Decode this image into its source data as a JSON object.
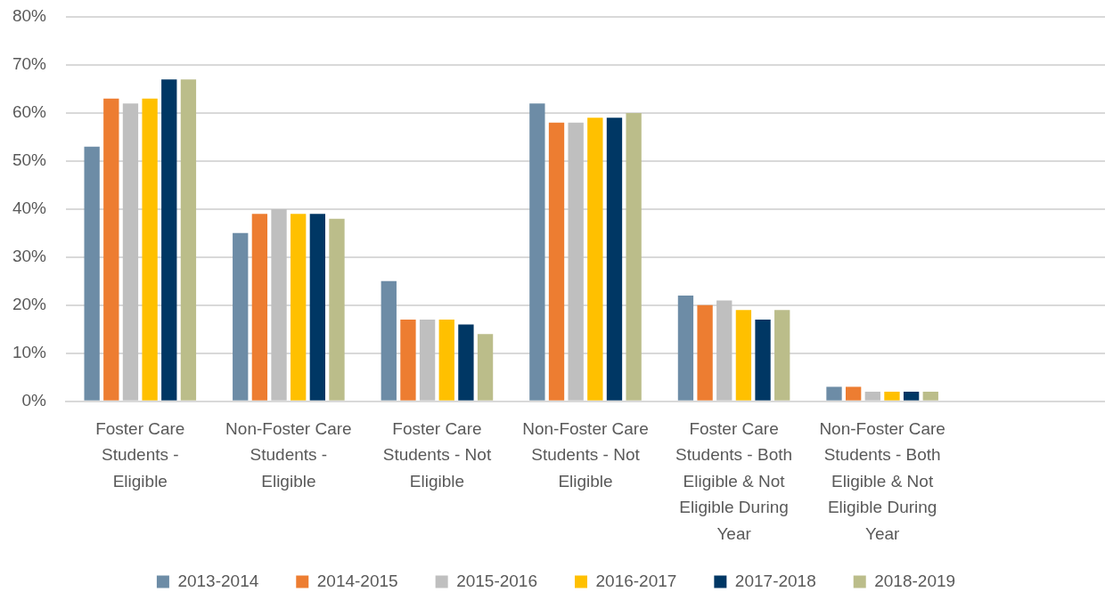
{
  "chart_data": {
    "type": "bar",
    "categories": [
      "Foster Care Students - Eligible",
      "Non-Foster Care Students - Eligible",
      "Foster Care Students - Not Eligible",
      "Non-Foster Care Students - Not Eligible",
      "Foster Care Students - Both Eligible & Not Eligible During Year",
      "Non-Foster Care Students - Both Eligible & Not Eligible During Year",
      null
    ],
    "series": [
      {
        "name": "2013-2014",
        "color": "#6d8ca6",
        "values": [
          53,
          35,
          25,
          62,
          22,
          3,
          null
        ]
      },
      {
        "name": "2014-2015",
        "color": "#ed7d31",
        "values": [
          63,
          39,
          17,
          58,
          20,
          3,
          null
        ]
      },
      {
        "name": "2015-2016",
        "color": "#bfbfbf",
        "values": [
          62,
          40,
          17,
          58,
          21,
          2,
          null
        ]
      },
      {
        "name": "2016-2017",
        "color": "#ffc000",
        "values": [
          63,
          39,
          17,
          59,
          19,
          2,
          null
        ]
      },
      {
        "name": "2017-2018",
        "color": "#003764",
        "values": [
          67,
          39,
          16,
          59,
          17,
          2,
          null
        ]
      },
      {
        "name": "2018-2019",
        "color": "#bbbd8a",
        "values": [
          67,
          38,
          14,
          60,
          19,
          2,
          null
        ]
      }
    ],
    "ylim": [
      0,
      80
    ],
    "yticks": [
      {
        "value": 0,
        "label": "0%"
      },
      {
        "value": 10,
        "label": "10%"
      },
      {
        "value": 20,
        "label": "20%"
      },
      {
        "value": 30,
        "label": "30%"
      },
      {
        "value": 40,
        "label": "40%"
      },
      {
        "value": 50,
        "label": "50%"
      },
      {
        "value": 60,
        "label": "60%"
      },
      {
        "value": 70,
        "label": "70%"
      },
      {
        "value": 80,
        "label": "80%"
      }
    ],
    "grid": "y",
    "legend": "bottom"
  }
}
